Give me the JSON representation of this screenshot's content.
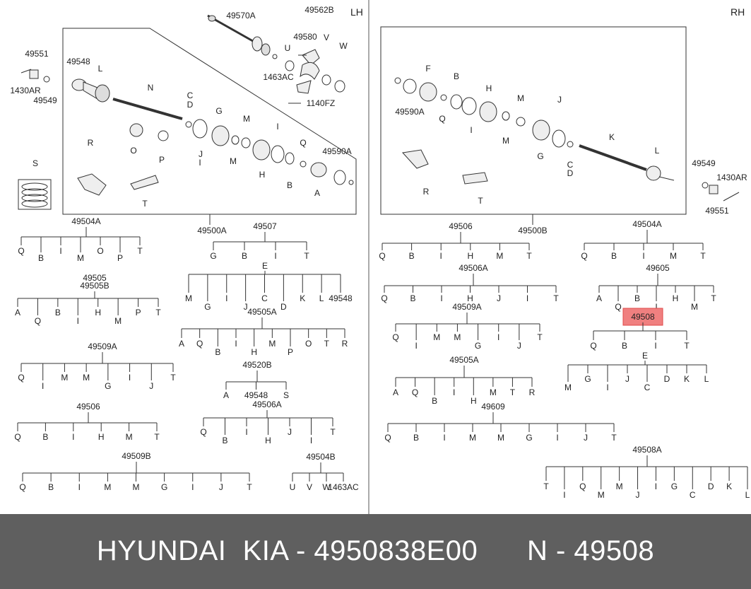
{
  "sides": {
    "left": "LH",
    "right": "RH"
  },
  "footer": "HYUNDAI  KIA - 4950838E00      N - 49508",
  "colors": {
    "highlight_fill": "#f08080",
    "highlight_border": "#e04848",
    "footer_bg": "#5f5f5f"
  },
  "lh_callouts": [
    {
      "text": "49570A"
    },
    {
      "text": "49562B"
    },
    {
      "text": "49580"
    },
    {
      "text": "U"
    },
    {
      "text": "V"
    },
    {
      "text": "W"
    },
    {
      "text": "1463AC"
    },
    {
      "text": "1140FZ"
    },
    {
      "text": "49551"
    },
    {
      "text": "1430AR"
    },
    {
      "text": "49549"
    },
    {
      "text": "49548"
    },
    {
      "text": "L"
    },
    {
      "text": "N"
    },
    {
      "text": "C"
    },
    {
      "text": "D"
    },
    {
      "text": "G"
    },
    {
      "text": "M"
    },
    {
      "text": "O"
    },
    {
      "text": "P"
    },
    {
      "text": "J"
    },
    {
      "text": "I"
    },
    {
      "text": "M"
    },
    {
      "text": "R"
    },
    {
      "text": "H"
    },
    {
      "text": "I"
    },
    {
      "text": "Q"
    },
    {
      "text": "49590A"
    },
    {
      "text": "B"
    },
    {
      "text": "A"
    },
    {
      "text": "T"
    },
    {
      "text": "S"
    }
  ],
  "rh_callouts": [
    {
      "text": "49590A"
    },
    {
      "text": "F"
    },
    {
      "text": "Q"
    },
    {
      "text": "B"
    },
    {
      "text": "I"
    },
    {
      "text": "H"
    },
    {
      "text": "M"
    },
    {
      "text": "M"
    },
    {
      "text": "J"
    },
    {
      "text": "G"
    },
    {
      "text": "C"
    },
    {
      "text": "D"
    },
    {
      "text": "K"
    },
    {
      "text": "L"
    },
    {
      "text": "R"
    },
    {
      "text": "T"
    },
    {
      "text": "49549"
    },
    {
      "text": "1430AR"
    },
    {
      "text": "49551"
    }
  ],
  "assembly_labels": [
    {
      "text": "49500A"
    },
    {
      "text": "49500B"
    }
  ],
  "trees": [
    {
      "code": "49504A",
      "children": [
        "Q",
        "B",
        "I",
        "M",
        "O",
        "P",
        "T"
      ]
    },
    {
      "code": "49507",
      "children": [
        "G",
        "B",
        "I",
        "T"
      ],
      "sub": {
        "code": "E",
        "children": [
          "M",
          "G",
          "I",
          "J",
          "C",
          "D",
          "K",
          "L",
          "49548"
        ]
      }
    },
    {
      "code": "49505",
      "code2": "49505B",
      "children": [
        "A",
        "Q",
        "B",
        "I",
        "H",
        "M",
        "P",
        "T"
      ]
    },
    {
      "code": "49505A",
      "children": [
        "A",
        "Q",
        "B",
        "I",
        "H",
        "M",
        "P",
        "O",
        "T",
        "R"
      ]
    },
    {
      "code": "49509A",
      "children": [
        "Q",
        "I",
        "M",
        "M",
        "G",
        "I",
        "J",
        "T"
      ]
    },
    {
      "code": "49520B",
      "children": [
        "A",
        "49548",
        "S"
      ]
    },
    {
      "code": "49506",
      "children": [
        "Q",
        "B",
        "I",
        "H",
        "M",
        "T"
      ]
    },
    {
      "code": "49506A",
      "children": [
        "Q",
        "B",
        "I",
        "H",
        "J",
        "I",
        "T"
      ]
    },
    {
      "code": "49509B",
      "children": [
        "Q",
        "B",
        "I",
        "M",
        "M",
        "G",
        "I",
        "J",
        "T"
      ]
    },
    {
      "code": "49504B",
      "children": [
        "U",
        "V",
        "W",
        "1463AC"
      ]
    },
    {
      "code": "49506",
      "children": [
        "Q",
        "B",
        "I",
        "H",
        "M",
        "T"
      ]
    },
    {
      "code": "49504A",
      "children": [
        "Q",
        "B",
        "I",
        "M",
        "T"
      ]
    },
    {
      "code": "49506A",
      "children": [
        "Q",
        "B",
        "I",
        "H",
        "J",
        "I",
        "T"
      ]
    },
    {
      "code": "49605",
      "children": [
        "A",
        "Q",
        "B",
        "I",
        "H",
        "M",
        "T"
      ]
    },
    {
      "code": "49509A",
      "children": [
        "Q",
        "I",
        "M",
        "M",
        "G",
        "I",
        "J",
        "T"
      ]
    },
    {
      "code": "49508",
      "highlight": true,
      "children": [
        "Q",
        "B",
        "I",
        "T"
      ],
      "sub": {
        "code": "E",
        "children": [
          "M",
          "G",
          "I",
          "J",
          "C",
          "D",
          "K",
          "L"
        ]
      }
    },
    {
      "code": "49505A",
      "children": [
        "A",
        "Q",
        "B",
        "I",
        "H",
        "M",
        "T",
        "R"
      ]
    },
    {
      "code": "49609",
      "children": [
        "Q",
        "B",
        "I",
        "M",
        "M",
        "G",
        "I",
        "J",
        "T"
      ]
    },
    {
      "code": "49508A",
      "children": [
        "T",
        "I",
        "Q",
        "M",
        "M",
        "J",
        "I",
        "G",
        "C",
        "D",
        "K",
        "L"
      ]
    }
  ]
}
